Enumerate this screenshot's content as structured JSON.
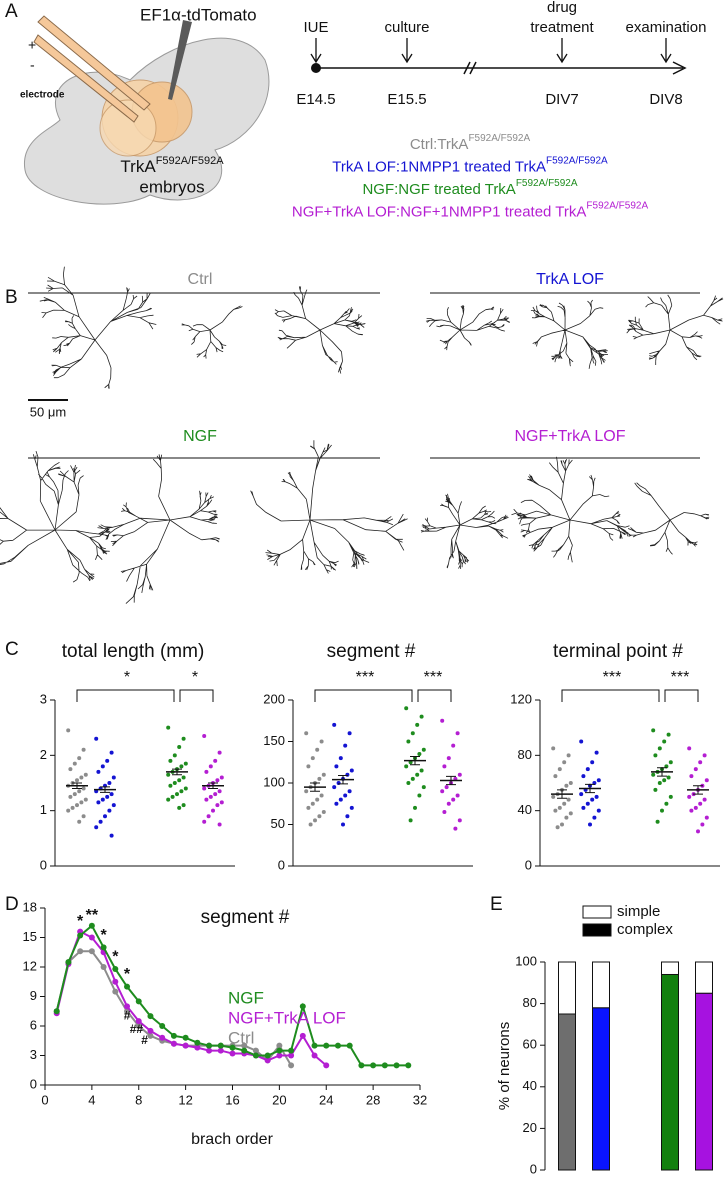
{
  "panel_labels": [
    "A",
    "B",
    "C",
    "D",
    "E"
  ],
  "panel_a": {
    "construct": "EF1α-tdTomato",
    "plus": "+",
    "minus": "-",
    "electrode": "electrode",
    "embryo": {
      "text": "TrkA",
      "sup": "F592A/F592A",
      "line2": "embryos"
    },
    "timeline": [
      {
        "event": [
          "IUE"
        ],
        "stage": "E14.5"
      },
      {
        "event": [
          "culture"
        ],
        "stage": "E15.5"
      },
      {
        "event": [
          "drug",
          "treatment"
        ],
        "stage": "DIV7"
      },
      {
        "event": [
          "examination"
        ],
        "stage": "DIV8"
      }
    ],
    "conditions": [
      {
        "label": "Ctrl:",
        "desc": "TrkA",
        "sup": "F592A/F592A",
        "color": "#8c8c8c"
      },
      {
        "label": "TrkA LOF:",
        "desc": "1NMPP1 treated TrkA",
        "sup": "F592A/F592A",
        "color": "#1414d2"
      },
      {
        "label": "NGF:",
        "desc": "NGF treated TrkA",
        "sup": "F592A/F592A",
        "color": "#1e8c1e"
      },
      {
        "label": "NGF+TrkA LOF:",
        "desc": "NGF+1NMPP1 treated TrkA",
        "sup": "F592A/F592A",
        "color": "#b41ed2"
      }
    ]
  },
  "panel_b": {
    "groups": [
      {
        "title": "Ctrl",
        "color": "#8c8c8c"
      },
      {
        "title": "TrkA LOF",
        "color": "#1414d2"
      },
      {
        "title": "NGF",
        "color": "#1e8c1e"
      },
      {
        "title": "NGF+TrkA LOF",
        "color": "#b41ed2"
      }
    ],
    "scale_bar": "50 μm"
  },
  "chart_data": [
    {
      "type": "dot_plot",
      "title": "total length (mm)",
      "ylim": [
        0,
        3
      ],
      "yticks": [
        0,
        1,
        2,
        3
      ],
      "series": [
        {
          "color": "#8c8c8c",
          "values": [
            2.45,
            2.1,
            1.95,
            1.85,
            1.75,
            1.65,
            1.6,
            1.55,
            1.5,
            1.45,
            1.4,
            1.35,
            1.3,
            1.25,
            1.2,
            1.15,
            1.1,
            1.05,
            1.0,
            0.9,
            0.8
          ],
          "mean": 1.45,
          "sem": 0.05
        },
        {
          "color": "#1414d2",
          "values": [
            2.3,
            2.05,
            1.9,
            1.8,
            1.7,
            1.6,
            1.5,
            1.45,
            1.4,
            1.35,
            1.3,
            1.25,
            1.2,
            1.15,
            1.1,
            1.0,
            0.9,
            0.8,
            0.7,
            0.55
          ],
          "mean": 1.38,
          "sem": 0.05
        },
        {
          "color": "#1e8c1e",
          "values": [
            2.5,
            2.3,
            2.15,
            2.0,
            1.9,
            1.85,
            1.8,
            1.75,
            1.7,
            1.65,
            1.6,
            1.55,
            1.5,
            1.45,
            1.4,
            1.35,
            1.3,
            1.25,
            1.2,
            1.1,
            1.05
          ],
          "mean": 1.7,
          "sem": 0.05
        },
        {
          "color": "#b41ed2",
          "values": [
            2.35,
            2.05,
            1.9,
            1.8,
            1.7,
            1.6,
            1.55,
            1.5,
            1.45,
            1.4,
            1.35,
            1.3,
            1.25,
            1.2,
            1.15,
            1.1,
            1.0,
            0.9,
            0.8,
            0.75
          ],
          "mean": 1.45,
          "sem": 0.05
        }
      ],
      "significance": [
        {
          "label": "*"
        },
        {
          "label": "*"
        }
      ]
    },
    {
      "type": "dot_plot",
      "title": "segment #",
      "ylim": [
        0,
        200
      ],
      "yticks": [
        0,
        50,
        100,
        150,
        200
      ],
      "series": [
        {
          "color": "#8c8c8c",
          "values": [
            160,
            150,
            140,
            130,
            120,
            110,
            105,
            100,
            95,
            90,
            85,
            80,
            75,
            70,
            65,
            60,
            55,
            50
          ],
          "mean": 95,
          "sem": 5
        },
        {
          "color": "#1414d2",
          "values": [
            170,
            160,
            145,
            130,
            120,
            115,
            110,
            105,
            100,
            95,
            90,
            85,
            80,
            75,
            70,
            60,
            50
          ],
          "mean": 104,
          "sem": 5
        },
        {
          "color": "#1e8c1e",
          "values": [
            190,
            180,
            170,
            160,
            150,
            140,
            135,
            130,
            125,
            120,
            115,
            110,
            105,
            100,
            95,
            85,
            70,
            55
          ],
          "mean": 127,
          "sem": 5
        },
        {
          "color": "#b41ed2",
          "values": [
            175,
            160,
            145,
            130,
            120,
            110,
            105,
            100,
            95,
            90,
            85,
            80,
            75,
            65,
            55,
            45
          ],
          "mean": 103,
          "sem": 5
        }
      ],
      "significance": [
        {
          "label": "***"
        },
        {
          "label": "***"
        }
      ]
    },
    {
      "type": "dot_plot",
      "title": "terminal point #",
      "ylim": [
        0,
        120
      ],
      "yticks": [
        0,
        40,
        80,
        120
      ],
      "series": [
        {
          "color": "#8c8c8c",
          "values": [
            85,
            80,
            75,
            70,
            65,
            60,
            58,
            55,
            52,
            50,
            48,
            45,
            42,
            40,
            38,
            35,
            30,
            28
          ],
          "mean": 52,
          "sem": 3
        },
        {
          "color": "#1414d2",
          "values": [
            90,
            82,
            75,
            70,
            65,
            62,
            60,
            58,
            55,
            52,
            50,
            48,
            45,
            42,
            40,
            35,
            30
          ],
          "mean": 56,
          "sem": 3
        },
        {
          "color": "#1e8c1e",
          "values": [
            98,
            95,
            90,
            85,
            80,
            75,
            72,
            70,
            68,
            66,
            64,
            62,
            60,
            55,
            50,
            45,
            40,
            32
          ],
          "mean": 68,
          "sem": 3
        },
        {
          "color": "#b41ed2",
          "values": [
            85,
            80,
            75,
            70,
            65,
            62,
            58,
            55,
            52,
            50,
            48,
            45,
            42,
            40,
            35,
            30,
            25
          ],
          "mean": 55,
          "sem": 3
        }
      ],
      "significance": [
        {
          "label": "***"
        },
        {
          "label": "***"
        }
      ]
    },
    {
      "type": "line",
      "title": "segment #",
      "x_label": "brach order",
      "xlim": [
        0,
        32
      ],
      "xticks": [
        0,
        4,
        8,
        12,
        16,
        20,
        24,
        28,
        32
      ],
      "ylim": [
        0,
        18
      ],
      "yticks": [
        0,
        3,
        6,
        9,
        12,
        15,
        18
      ],
      "x": [
        1,
        2,
        3,
        4,
        5,
        6,
        7,
        8,
        9,
        10,
        11,
        12,
        13,
        14,
        15,
        16,
        17,
        18,
        19,
        20,
        21,
        22,
        23,
        24,
        25,
        26,
        27,
        28,
        29,
        30,
        31
      ],
      "series": [
        {
          "name": "NGF",
          "color": "#1e8c1e",
          "values": [
            7.5,
            12.5,
            15.2,
            16.2,
            14,
            11.8,
            10,
            8.5,
            7,
            6,
            5,
            4.8,
            4.3,
            4,
            4,
            3.8,
            3.5,
            3,
            3,
            3.5,
            3.5,
            8,
            4,
            4,
            4,
            4,
            2,
            2,
            2,
            2,
            2
          ]
        },
        {
          "name": "NGF+TrkA LOF",
          "color": "#b41ed2",
          "values": [
            7.3,
            12.3,
            15.6,
            15,
            13.5,
            10.5,
            8,
            6.5,
            5.5,
            4.8,
            4.2,
            4,
            3.8,
            3.5,
            3.5,
            3.2,
            3.2,
            3,
            2.5,
            3,
            3,
            5,
            3,
            2,
            null,
            null,
            null,
            null,
            null,
            null,
            null
          ]
        },
        {
          "name": "Ctrl",
          "color": "#8c8c8c",
          "values": [
            7.5,
            12.5,
            13.6,
            13.6,
            12,
            9.5,
            7.5,
            6,
            5,
            4.5,
            4.2,
            4,
            4,
            4,
            4,
            4,
            4,
            3.5,
            2.5,
            4,
            2,
            null,
            null,
            null,
            null,
            null,
            null,
            null,
            null,
            null,
            null
          ]
        }
      ],
      "annotations": [
        {
          "text": "*",
          "x": 3,
          "y": 16.6
        },
        {
          "text": "**",
          "x": 4,
          "y": 17.2
        },
        {
          "text": "*",
          "x": 5,
          "y": 15.2
        },
        {
          "text": "*",
          "x": 6,
          "y": 13
        },
        {
          "text": "*",
          "x": 7,
          "y": 11.2
        },
        {
          "text": "#",
          "x": 7,
          "y": 7
        },
        {
          "text": "##",
          "x": 7.8,
          "y": 5.6
        },
        {
          "text": "#",
          "x": 8.5,
          "y": 4.5
        }
      ]
    },
    {
      "type": "stacked_bar",
      "y_label": "% of neurons",
      "ylim": [
        0,
        100
      ],
      "yticks": [
        0,
        20,
        40,
        60,
        80,
        100
      ],
      "categories": [
        null,
        null,
        null,
        null
      ],
      "series": [
        {
          "name": "complex",
          "color": "#000000",
          "bar_colors": [
            "#6e6e6e",
            "#0a14ff",
            "#13800f",
            "#a612e0"
          ],
          "values": [
            75,
            78,
            94,
            85
          ]
        },
        {
          "name": "simple",
          "color": "#ffffff",
          "values": [
            25,
            22,
            6,
            15
          ]
        }
      ]
    }
  ]
}
